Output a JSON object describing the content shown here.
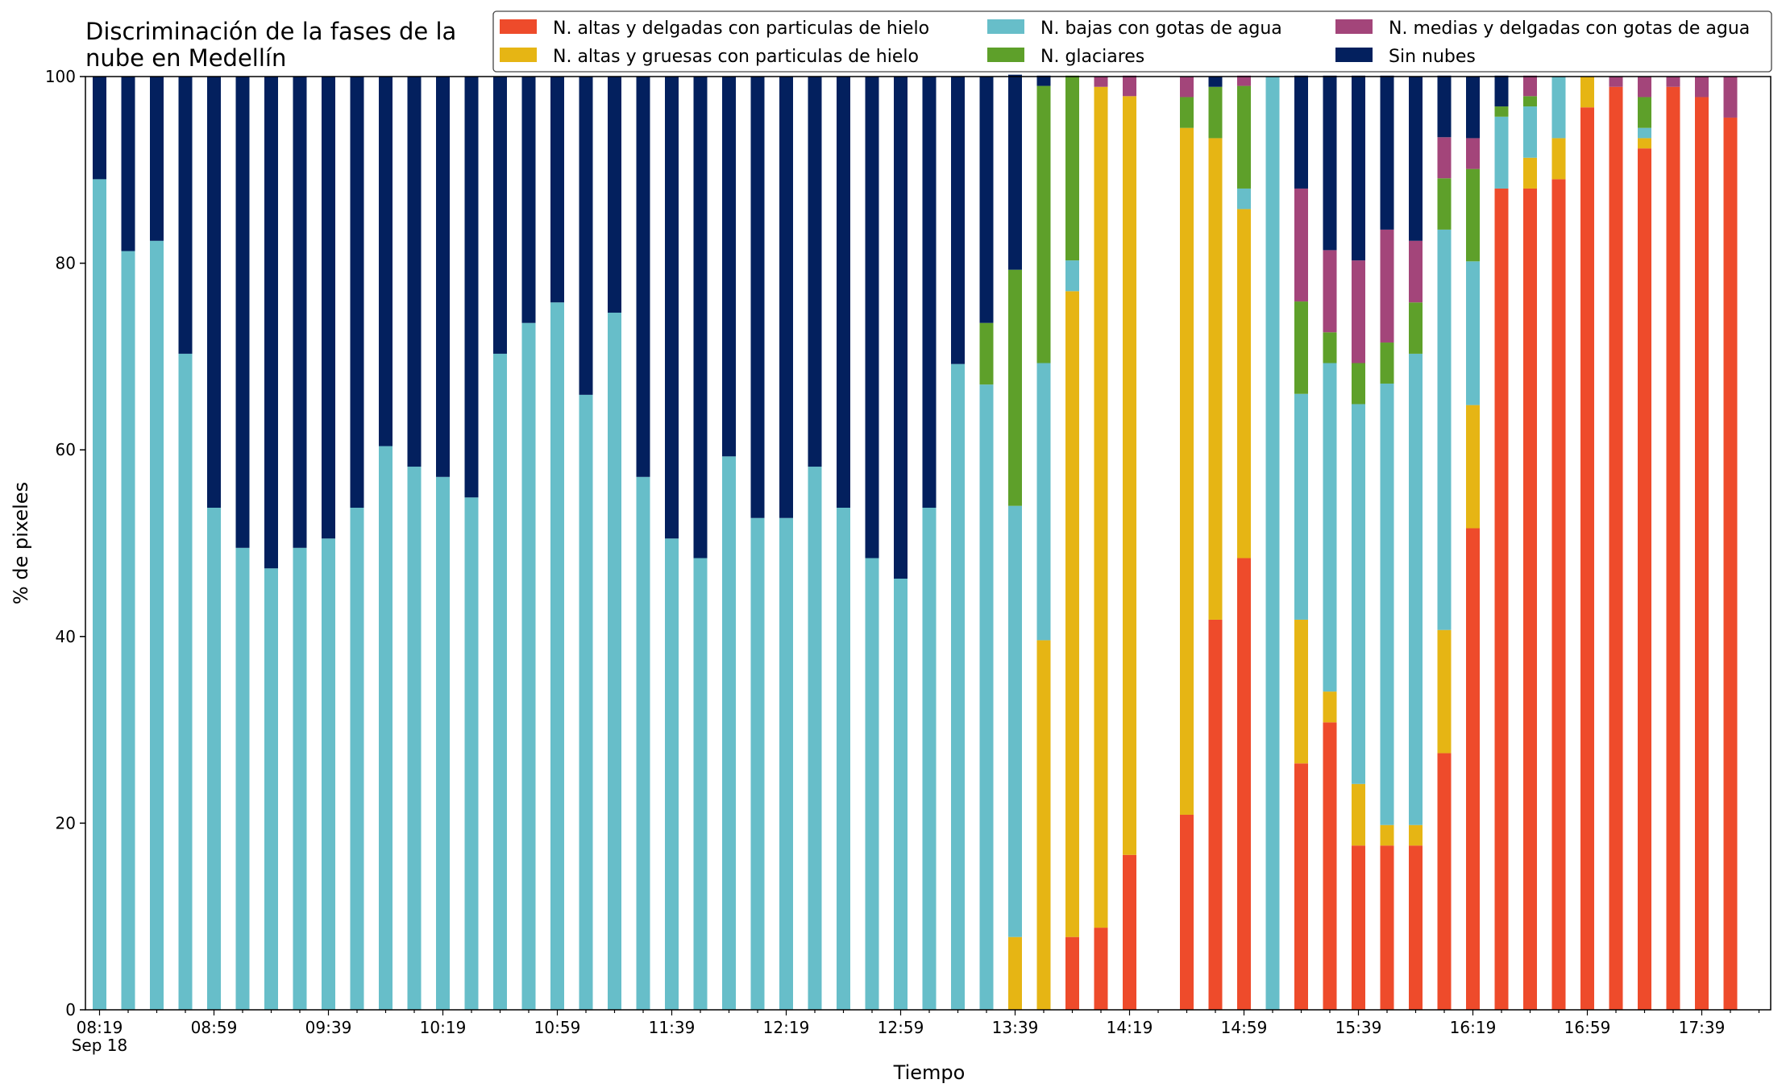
{
  "chart_data": {
    "type": "bar",
    "stacked": true,
    "title": "Discriminación de la fases de la\nnube en Medellín",
    "xlabel": "Tiempo",
    "ylabel": "% de pixeles",
    "ylim": [
      0,
      100
    ],
    "yticks": [
      0,
      20,
      40,
      60,
      80,
      100
    ],
    "xtick_labels": [
      "08:19\nSep 18",
      "08:59",
      "09:39",
      "10:19",
      "10:59",
      "11:39",
      "12:19",
      "12:59",
      "13:39",
      "14:19",
      "14:59",
      "15:39",
      "16:19",
      "16:59",
      "17:39"
    ],
    "categories": [
      "08:19",
      "08:29",
      "08:39",
      "08:49",
      "08:59",
      "09:09",
      "09:19",
      "09:29",
      "09:39",
      "09:49",
      "09:59",
      "10:09",
      "10:19",
      "10:29",
      "10:39",
      "10:49",
      "10:59",
      "11:09",
      "11:19",
      "11:29",
      "11:39",
      "11:49",
      "11:59",
      "12:09",
      "12:19",
      "12:29",
      "12:39",
      "12:49",
      "12:59",
      "13:09",
      "13:19",
      "13:29",
      "13:39",
      "13:49",
      "13:59",
      "14:09",
      "14:19",
      "14:29",
      "14:39",
      "14:49",
      "14:59",
      "15:09",
      "15:19",
      "15:29",
      "15:39",
      "15:49",
      "15:59",
      "16:09",
      "16:19",
      "16:29",
      "16:39",
      "16:49",
      "16:59",
      "17:09",
      "17:19",
      "17:29",
      "17:39",
      "17:49"
    ],
    "legend_position": "top-right",
    "legend_columns": 3,
    "series": [
      {
        "name": "N. altas y delgadas con particulas de hielo",
        "color": "#ee4b2b",
        "values": [
          0,
          0,
          0,
          0,
          0,
          0,
          0,
          0,
          0,
          0,
          0,
          0,
          0,
          0,
          0,
          0,
          0,
          0,
          0,
          0,
          0,
          0,
          0,
          0,
          0,
          0,
          0,
          0,
          0,
          0,
          0,
          0,
          0,
          0,
          7.8,
          8.8,
          16.6,
          0,
          20.9,
          41.8,
          48.4,
          0,
          26.4,
          30.8,
          17.6,
          17.6,
          17.6,
          27.5,
          51.6,
          88,
          88,
          89,
          96.7,
          98.9,
          92.3,
          98.9,
          97.8,
          95.6
        ]
      },
      {
        "name": "N. altas y gruesas con particulas de hielo",
        "color": "#e6b514",
        "values": [
          0,
          0,
          0,
          0,
          0,
          0,
          0,
          0,
          0,
          0,
          0,
          0,
          0,
          0,
          0,
          0,
          0,
          0,
          0,
          0,
          0,
          0,
          0,
          0,
          0,
          0,
          0,
          0,
          0,
          0,
          0,
          0,
          7.8,
          39.6,
          69.2,
          90.1,
          81.3,
          0,
          73.6,
          51.6,
          37.4,
          0,
          15.4,
          3.3,
          6.6,
          2.2,
          2.2,
          13.2,
          13.2,
          0,
          3.3,
          4.4,
          3.3,
          0,
          1.1,
          0,
          0,
          0
        ]
      },
      {
        "name": "N. bajas con gotas de agua",
        "color": "#67bec9",
        "values": [
          89,
          81.3,
          82.4,
          70.3,
          53.8,
          49.5,
          47.3,
          49.5,
          50.5,
          53.8,
          60.4,
          58.2,
          57.1,
          54.9,
          70.3,
          73.6,
          75.8,
          65.9,
          74.7,
          57.1,
          50.5,
          48.4,
          59.3,
          52.7,
          52.7,
          58.2,
          53.8,
          48.4,
          46.2,
          53.8,
          69.2,
          67,
          46.2,
          29.7,
          3.3,
          0,
          0,
          0,
          0,
          0,
          2.2,
          100,
          24.2,
          35.2,
          40.7,
          47.3,
          50.5,
          42.9,
          15.4,
          7.7,
          5.5,
          6.6,
          0,
          0,
          1.1,
          0,
          0,
          0
        ]
      },
      {
        "name": "N. glaciares",
        "color": "#5ea02a",
        "values": [
          0,
          0,
          0,
          0,
          0,
          0,
          0,
          0,
          0,
          0,
          0,
          0,
          0,
          0,
          0,
          0,
          0,
          0,
          0,
          0,
          0,
          0,
          0,
          0,
          0,
          0,
          0,
          0,
          0,
          0,
          0,
          6.6,
          25.3,
          29.7,
          19.8,
          0,
          0,
          0,
          3.3,
          5.5,
          11,
          0,
          9.9,
          3.3,
          4.4,
          4.4,
          5.5,
          5.5,
          9.9,
          1.1,
          1.1,
          0,
          0,
          0,
          3.3,
          0,
          0,
          0
        ]
      },
      {
        "name": "N. medias y delgadas con gotas de agua",
        "color": "#a3457a",
        "values": [
          0,
          0,
          0,
          0,
          0,
          0,
          0,
          0,
          0,
          0,
          0,
          0,
          0,
          0,
          0,
          0,
          0,
          0,
          0,
          0,
          0,
          0,
          0,
          0,
          0,
          0,
          0,
          0,
          0,
          0,
          0,
          0,
          0,
          0,
          0,
          1.1,
          2.2,
          0,
          2.2,
          0,
          1.1,
          0,
          12.1,
          8.8,
          11,
          12.1,
          6.6,
          4.4,
          3.3,
          0,
          2.2,
          0,
          0,
          1.1,
          2.2,
          1.1,
          2.2,
          4.4
        ]
      },
      {
        "name": "Sin nubes",
        "color": "#03205e",
        "values": [
          11,
          18.7,
          17.6,
          29.7,
          46.2,
          50.5,
          52.7,
          50.5,
          49.5,
          46.2,
          39.6,
          41.8,
          42.9,
          45.1,
          29.7,
          26.4,
          24.2,
          34.1,
          25.3,
          42.9,
          49.5,
          51.6,
          40.7,
          47.3,
          47.3,
          41.8,
          46.2,
          51.6,
          53.8,
          46.2,
          30.8,
          26.4,
          20.9,
          1.1,
          0,
          0,
          0,
          0,
          0,
          1.1,
          0,
          0,
          12.1,
          18.7,
          19.8,
          16.5,
          17.6,
          6.6,
          6.6,
          3.3,
          0,
          0,
          0,
          0,
          0,
          0,
          0,
          0
        ]
      }
    ]
  }
}
